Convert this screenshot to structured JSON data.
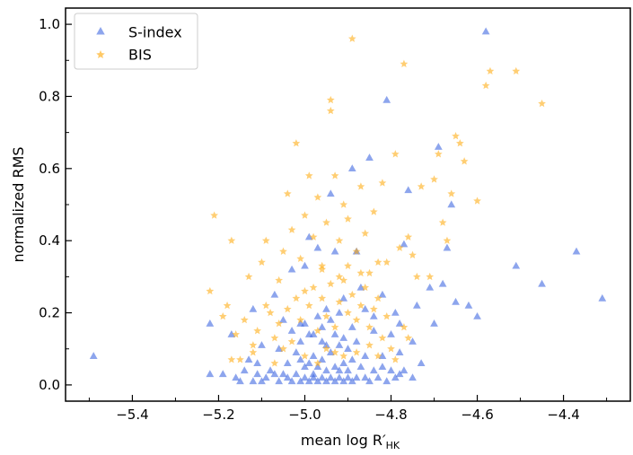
{
  "chart_data": {
    "type": "scatter",
    "xlabel": "mean log R′HK",
    "ylabel": "normalized RMS",
    "xlim": [
      -5.555,
      -4.245
    ],
    "ylim": [
      -0.045,
      1.045
    ],
    "xticks": [
      -5.4,
      -5.2,
      -5.0,
      -4.8,
      -4.6,
      -4.4
    ],
    "xtick_labels": [
      "−5.4",
      "−5.2",
      "−5.0",
      "−4.8",
      "−4.6",
      "−4.4"
    ],
    "yticks": [
      0.0,
      0.2,
      0.4,
      0.6,
      0.8,
      1.0
    ],
    "ytick_labels": [
      "0.0",
      "0.2",
      "0.4",
      "0.6",
      "0.8",
      "1.0"
    ],
    "grid": false,
    "legend_position": "top-left",
    "series": [
      {
        "name": "S-index",
        "marker": "triangle",
        "color": "#4169e1",
        "points": [
          [
            -5.49,
            0.08
          ],
          [
            -5.22,
            0.17
          ],
          [
            -5.22,
            0.03
          ],
          [
            -5.19,
            0.03
          ],
          [
            -5.17,
            0.14
          ],
          [
            -5.16,
            0.02
          ],
          [
            -5.13,
            0.07
          ],
          [
            -5.12,
            0.21
          ],
          [
            -5.11,
            0.03
          ],
          [
            -5.1,
            0.11
          ],
          [
            -5.09,
            0.02
          ],
          [
            -5.07,
            0.25
          ],
          [
            -5.07,
            0.03
          ],
          [
            -5.06,
            0.1
          ],
          [
            -5.05,
            0.18
          ],
          [
            -5.04,
            0.02
          ],
          [
            -5.03,
            0.32
          ],
          [
            -5.02,
            0.09
          ],
          [
            -5.01,
            0.17
          ],
          [
            -5.0,
            0.33
          ],
          [
            -5.0,
            0.05
          ],
          [
            -4.99,
            0.41
          ],
          [
            -4.99,
            0.14
          ],
          [
            -4.98,
            0.03
          ],
          [
            -4.97,
            0.38
          ],
          [
            -4.96,
            0.12
          ],
          [
            -4.95,
            0.21
          ],
          [
            -4.94,
            0.53
          ],
          [
            -4.93,
            0.37
          ],
          [
            -4.92,
            0.04
          ],
          [
            -4.91,
            0.24
          ],
          [
            -4.9,
            0.1
          ],
          [
            -4.89,
            0.6
          ],
          [
            -4.88,
            0.37
          ],
          [
            -4.87,
            0.27
          ],
          [
            -4.86,
            0.02
          ],
          [
            -4.85,
            0.63
          ],
          [
            -4.84,
            0.15
          ],
          [
            -4.82,
            0.08
          ],
          [
            -4.81,
            0.79
          ],
          [
            -4.79,
            0.2
          ],
          [
            -4.78,
            0.03
          ],
          [
            -4.77,
            0.39
          ],
          [
            -4.76,
            0.54
          ],
          [
            -4.75,
            0.12
          ],
          [
            -4.74,
            0.22
          ],
          [
            -4.73,
            0.06
          ],
          [
            -4.71,
            0.27
          ],
          [
            -4.7,
            0.17
          ],
          [
            -4.69,
            0.66
          ],
          [
            -4.68,
            0.28
          ],
          [
            -4.67,
            0.38
          ],
          [
            -4.66,
            0.5
          ],
          [
            -4.65,
            0.23
          ],
          [
            -4.62,
            0.22
          ],
          [
            -4.6,
            0.19
          ],
          [
            -4.58,
            0.98
          ],
          [
            -4.51,
            0.33
          ],
          [
            -4.45,
            0.28
          ],
          [
            -4.37,
            0.37
          ],
          [
            -4.31,
            0.24
          ],
          [
            -5.15,
            0.01
          ],
          [
            -5.14,
            0.04
          ],
          [
            -5.12,
            0.01
          ],
          [
            -5.11,
            0.06
          ],
          [
            -5.1,
            0.01
          ],
          [
            -5.08,
            0.04
          ],
          [
            -5.06,
            0.01
          ],
          [
            -5.05,
            0.03
          ],
          [
            -5.04,
            0.06
          ],
          [
            -5.03,
            0.01
          ],
          [
            -5.02,
            0.03
          ],
          [
            -5.01,
            0.01
          ],
          [
            -5.01,
            0.07
          ],
          [
            -5.0,
            0.02
          ],
          [
            -4.99,
            0.01
          ],
          [
            -4.99,
            0.06
          ],
          [
            -4.98,
            0.02
          ],
          [
            -4.98,
            0.08
          ],
          [
            -4.97,
            0.01
          ],
          [
            -4.97,
            0.05
          ],
          [
            -4.96,
            0.02
          ],
          [
            -4.96,
            0.07
          ],
          [
            -4.95,
            0.01
          ],
          [
            -4.95,
            0.04
          ],
          [
            -4.94,
            0.02
          ],
          [
            -4.94,
            0.09
          ],
          [
            -4.93,
            0.01
          ],
          [
            -4.93,
            0.05
          ],
          [
            -4.92,
            0.02
          ],
          [
            -4.92,
            0.11
          ],
          [
            -4.91,
            0.01
          ],
          [
            -4.91,
            0.06
          ],
          [
            -4.9,
            0.02
          ],
          [
            -4.9,
            0.04
          ],
          [
            -4.89,
            0.01
          ],
          [
            -4.89,
            0.07
          ],
          [
            -4.88,
            0.02
          ],
          [
            -4.87,
            0.05
          ],
          [
            -4.86,
            0.08
          ],
          [
            -4.85,
            0.01
          ],
          [
            -4.84,
            0.04
          ],
          [
            -4.83,
            0.02
          ],
          [
            -4.82,
            0.05
          ],
          [
            -4.81,
            0.01
          ],
          [
            -4.8,
            0.04
          ],
          [
            -4.79,
            0.02
          ],
          [
            -4.78,
            0.09
          ],
          [
            -4.77,
            0.04
          ],
          [
            -4.75,
            0.02
          ],
          [
            -5.03,
            0.15
          ],
          [
            -5.01,
            0.12
          ],
          [
            -5.0,
            0.17
          ],
          [
            -4.98,
            0.14
          ],
          [
            -4.97,
            0.19
          ],
          [
            -4.96,
            0.16
          ],
          [
            -4.95,
            0.11
          ],
          [
            -4.94,
            0.18
          ],
          [
            -4.93,
            0.14
          ],
          [
            -4.92,
            0.2
          ],
          [
            -4.91,
            0.13
          ],
          [
            -4.89,
            0.16
          ],
          [
            -4.88,
            0.12
          ],
          [
            -4.86,
            0.21
          ],
          [
            -4.84,
            0.19
          ],
          [
            -4.82,
            0.25
          ],
          [
            -4.8,
            0.14
          ],
          [
            -4.78,
            0.17
          ]
        ]
      },
      {
        "name": "BIS",
        "marker": "star",
        "color": "#ffa500",
        "points": [
          [
            -5.22,
            0.26
          ],
          [
            -5.21,
            0.47
          ],
          [
            -5.19,
            0.19
          ],
          [
            -5.17,
            0.4
          ],
          [
            -5.16,
            0.14
          ],
          [
            -5.15,
            0.07
          ],
          [
            -5.13,
            0.3
          ],
          [
            -5.12,
            0.09
          ],
          [
            -5.1,
            0.34
          ],
          [
            -5.09,
            0.4
          ],
          [
            -5.08,
            0.2
          ],
          [
            -5.07,
            0.13
          ],
          [
            -5.06,
            0.29
          ],
          [
            -5.05,
            0.37
          ],
          [
            -5.04,
            0.53
          ],
          [
            -5.03,
            0.43
          ],
          [
            -5.02,
            0.67
          ],
          [
            -5.01,
            0.35
          ],
          [
            -5.0,
            0.47
          ],
          [
            -5.0,
            0.26
          ],
          [
            -4.99,
            0.58
          ],
          [
            -4.98,
            0.41
          ],
          [
            -4.97,
            0.52
          ],
          [
            -4.96,
            0.33
          ],
          [
            -4.95,
            0.45
          ],
          [
            -4.94,
            0.79
          ],
          [
            -4.94,
            0.76
          ],
          [
            -4.93,
            0.58
          ],
          [
            -4.92,
            0.4
          ],
          [
            -4.91,
            0.5
          ],
          [
            -4.9,
            0.46
          ],
          [
            -4.89,
            0.96
          ],
          [
            -4.88,
            0.37
          ],
          [
            -4.87,
            0.55
          ],
          [
            -4.86,
            0.42
          ],
          [
            -4.85,
            0.31
          ],
          [
            -4.84,
            0.48
          ],
          [
            -4.83,
            0.34
          ],
          [
            -4.82,
            0.56
          ],
          [
            -4.81,
            0.34
          ],
          [
            -4.79,
            0.64
          ],
          [
            -4.78,
            0.38
          ],
          [
            -4.77,
            0.89
          ],
          [
            -4.76,
            0.41
          ],
          [
            -4.75,
            0.36
          ],
          [
            -4.74,
            0.3
          ],
          [
            -4.73,
            0.55
          ],
          [
            -4.71,
            0.3
          ],
          [
            -4.7,
            0.57
          ],
          [
            -4.69,
            0.64
          ],
          [
            -4.68,
            0.45
          ],
          [
            -4.67,
            0.4
          ],
          [
            -4.66,
            0.53
          ],
          [
            -4.65,
            0.69
          ],
          [
            -4.64,
            0.67
          ],
          [
            -4.63,
            0.62
          ],
          [
            -4.6,
            0.51
          ],
          [
            -4.58,
            0.83
          ],
          [
            -4.57,
            0.87
          ],
          [
            -4.51,
            0.87
          ],
          [
            -4.45,
            0.78
          ],
          [
            -5.18,
            0.22
          ],
          [
            -5.14,
            0.18
          ],
          [
            -5.11,
            0.15
          ],
          [
            -5.09,
            0.22
          ],
          [
            -5.06,
            0.17
          ],
          [
            -5.04,
            0.21
          ],
          [
            -5.03,
            0.12
          ],
          [
            -5.02,
            0.24
          ],
          [
            -5.01,
            0.18
          ],
          [
            -4.99,
            0.22
          ],
          [
            -4.98,
            0.27
          ],
          [
            -4.97,
            0.15
          ],
          [
            -4.96,
            0.24
          ],
          [
            -4.95,
            0.19
          ],
          [
            -4.94,
            0.28
          ],
          [
            -4.93,
            0.16
          ],
          [
            -4.92,
            0.23
          ],
          [
            -4.91,
            0.29
          ],
          [
            -4.9,
            0.2
          ],
          [
            -4.89,
            0.25
          ],
          [
            -4.88,
            0.18
          ],
          [
            -4.87,
            0.22
          ],
          [
            -4.86,
            0.27
          ],
          [
            -4.85,
            0.16
          ],
          [
            -4.84,
            0.21
          ],
          [
            -4.83,
            0.24
          ],
          [
            -4.82,
            0.13
          ],
          [
            -4.81,
            0.19
          ],
          [
            -4.8,
            0.1
          ],
          [
            -4.79,
            0.07
          ],
          [
            -4.77,
            0.16
          ],
          [
            -4.76,
            0.13
          ],
          [
            -5.05,
            0.1
          ],
          [
            -5.0,
            0.08
          ],
          [
            -4.97,
            0.06
          ],
          [
            -4.95,
            0.1
          ],
          [
            -4.93,
            0.09
          ],
          [
            -4.91,
            0.08
          ],
          [
            -4.88,
            0.09
          ],
          [
            -4.85,
            0.11
          ],
          [
            -4.83,
            0.08
          ],
          [
            -5.07,
            0.06
          ],
          [
            -5.12,
            0.11
          ],
          [
            -5.17,
            0.07
          ],
          [
            -4.96,
            0.32
          ],
          [
            -4.92,
            0.3
          ],
          [
            -4.9,
            0.33
          ],
          [
            -4.87,
            0.31
          ]
        ]
      }
    ]
  }
}
